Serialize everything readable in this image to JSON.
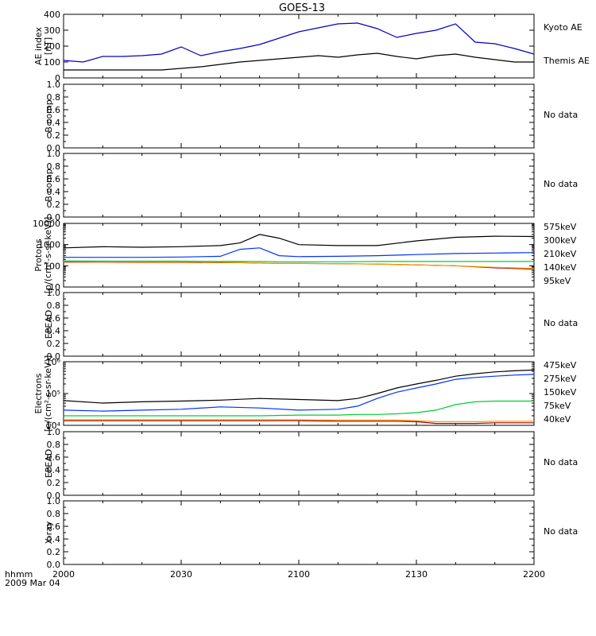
{
  "title": "GOES-13",
  "footer": {
    "time_label": "hhmm",
    "date_label": "2009 Mar 04"
  },
  "x_ticks": [
    "2000",
    "2030",
    "2100",
    "2130",
    "2200"
  ],
  "chart_data": [
    {
      "type": "line",
      "id": "ae",
      "ylabel": [
        "AE index",
        "[nT]"
      ],
      "ylim": [
        0,
        400
      ],
      "scale": "linear",
      "ticks": [
        {
          "v": 0,
          "t": "0"
        },
        {
          "v": 100,
          "t": "100"
        },
        {
          "v": 200,
          "t": "200"
        },
        {
          "v": 300,
          "t": "300"
        },
        {
          "v": 400,
          "t": "400"
        }
      ],
      "x": [
        0,
        5,
        10,
        15,
        20,
        25,
        30,
        35,
        40,
        45,
        50,
        55,
        60,
        65,
        70,
        75,
        80,
        85,
        90,
        95,
        100,
        105,
        110,
        115,
        120
      ],
      "series": [
        {
          "name": "Kyoto AE",
          "color": "#0000cc",
          "values": [
            110,
            100,
            135,
            135,
            140,
            150,
            195,
            140,
            165,
            185,
            210,
            250,
            290,
            315,
            340,
            345,
            310,
            255,
            280,
            300,
            340,
            225,
            215,
            185,
            150
          ]
        },
        {
          "name": "Themis AE",
          "color": "#000000",
          "values": [
            50,
            50,
            50,
            50,
            50,
            50,
            60,
            70,
            85,
            100,
            110,
            120,
            130,
            140,
            130,
            145,
            155,
            135,
            120,
            140,
            150,
            130,
            115,
            100,
            100
          ]
        }
      ]
    },
    {
      "type": "line",
      "id": "b1",
      "ylabel": [
        "B comp"
      ],
      "ylim": [
        0,
        1
      ],
      "scale": "linear",
      "ticks": "unit",
      "no_data": "No data"
    },
    {
      "type": "line",
      "id": "b2",
      "ylabel": [
        "B comp"
      ],
      "ylim": [
        0,
        1
      ],
      "scale": "linear",
      "ticks": "unit",
      "no_data": "No data"
    },
    {
      "type": "line",
      "id": "protons",
      "ylabel": [
        "Protons",
        "[p/(cm²-s-sr-keV)]"
      ],
      "ylim": [
        10,
        10000
      ],
      "scale": "log",
      "ticks": [
        {
          "v": 10,
          "t": "10"
        },
        {
          "v": 100,
          "t": "100"
        },
        {
          "v": 1000,
          "t": "1000"
        },
        {
          "v": 10000,
          "t": "10000"
        }
      ],
      "x": [
        0,
        10,
        20,
        30,
        40,
        45,
        50,
        55,
        60,
        70,
        80,
        90,
        100,
        110,
        120
      ],
      "series": [
        {
          "name": "575keV",
          "color": "#990000",
          "values": [
            150,
            150,
            145,
            145,
            140,
            140,
            135,
            130,
            130,
            125,
            120,
            110,
            100,
            80,
            70
          ]
        },
        {
          "name": "300keV",
          "color": "#ff9900",
          "values": [
            160,
            155,
            150,
            150,
            145,
            140,
            135,
            130,
            130,
            125,
            120,
            110,
            100,
            85,
            75
          ]
        },
        {
          "name": "210keV",
          "color": "#00cc33",
          "values": [
            170,
            165,
            165,
            165,
            160,
            160,
            160,
            155,
            155,
            155,
            160,
            160,
            160,
            160,
            160
          ]
        },
        {
          "name": "140keV",
          "color": "#0033ff",
          "values": [
            250,
            250,
            250,
            260,
            280,
            600,
            700,
            300,
            270,
            280,
            300,
            340,
            380,
            400,
            420
          ]
        },
        {
          "name": "95keV",
          "color": "#000000",
          "values": [
            700,
            800,
            750,
            800,
            900,
            1200,
            3000,
            2000,
            1000,
            900,
            900,
            1500,
            2200,
            2500,
            2400
          ]
        }
      ]
    },
    {
      "type": "line",
      "id": "epead1",
      "ylabel": [
        "EPEAD"
      ],
      "ylim": [
        0,
        1
      ],
      "scale": "linear",
      "ticks": "unit",
      "no_data": "No data"
    },
    {
      "type": "line",
      "id": "electrons",
      "ylabel": [
        "Electrons",
        "[e/(cm²-s-sr-keV)]"
      ],
      "ylim": [
        10000,
        1000000
      ],
      "scale": "log",
      "ticks": [
        {
          "v": 10000,
          "t": "10⁴"
        },
        {
          "v": 100000,
          "t": "10⁵"
        },
        {
          "v": 1000000,
          "t": "10⁶"
        }
      ],
      "x": [
        0,
        10,
        20,
        30,
        40,
        50,
        60,
        70,
        75,
        80,
        85,
        90,
        95,
        100,
        105,
        110,
        115,
        120
      ],
      "series": [
        {
          "name": "475keV",
          "color": "#990000",
          "values": [
            14000,
            14000,
            14000,
            14000,
            14000,
            14000,
            14000,
            13500,
            13500,
            13500,
            13500,
            13000,
            11500,
            11500,
            11500,
            12000,
            12000,
            12000
          ]
        },
        {
          "name": "275keV",
          "color": "#ff9900",
          "values": [
            15000,
            15000,
            15000,
            15000,
            15000,
            15000,
            15000,
            14500,
            14500,
            14500,
            14500,
            14000,
            13000,
            13000,
            13000,
            13500,
            13500,
            13500
          ]
        },
        {
          "name": "150keV",
          "color": "#00cc33",
          "values": [
            20000,
            20000,
            20000,
            20000,
            20000,
            20000,
            21000,
            21000,
            22000,
            22000,
            23000,
            25000,
            30000,
            45000,
            55000,
            58000,
            58000,
            58000
          ]
        },
        {
          "name": "75keV",
          "color": "#0033ff",
          "values": [
            30000,
            28000,
            30000,
            32000,
            38000,
            35000,
            30000,
            32000,
            40000,
            70000,
            110000,
            150000,
            200000,
            280000,
            320000,
            350000,
            380000,
            400000
          ]
        },
        {
          "name": "40keV",
          "color": "#000000",
          "values": [
            60000,
            50000,
            55000,
            58000,
            62000,
            70000,
            65000,
            60000,
            70000,
            100000,
            150000,
            200000,
            260000,
            350000,
            420000,
            480000,
            520000,
            550000
          ]
        }
      ]
    },
    {
      "type": "line",
      "id": "epead2",
      "ylabel": [
        "EPEAD"
      ],
      "ylim": [
        0,
        1
      ],
      "scale": "linear",
      "ticks": "unit",
      "no_data": "No data"
    },
    {
      "type": "line",
      "id": "xray",
      "ylabel": [
        "X-ray"
      ],
      "ylim": [
        0,
        1
      ],
      "scale": "linear",
      "ticks": "unit",
      "no_data": "No data"
    }
  ]
}
